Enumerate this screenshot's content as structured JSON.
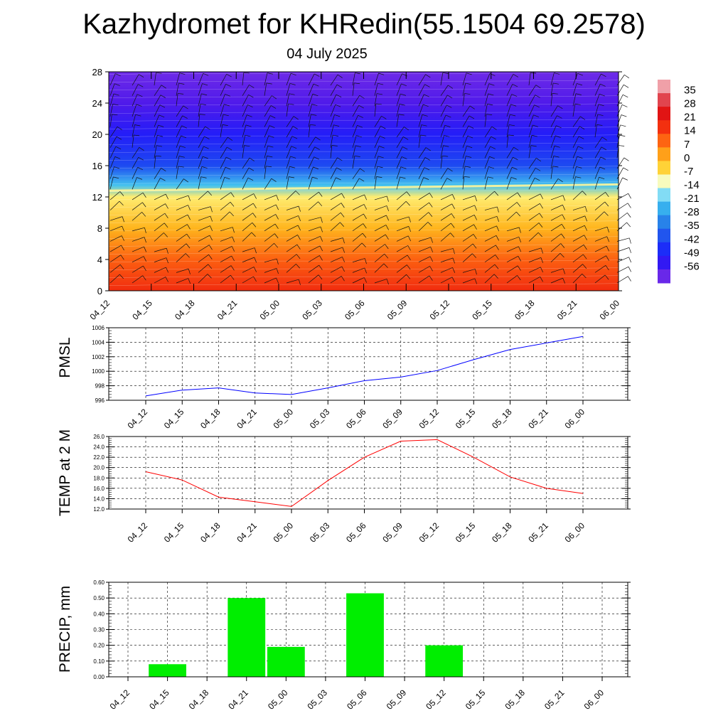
{
  "header": {
    "title": "Kazhydromet for KHRedin(55.1504 69.2578)",
    "date": "04 July 2025"
  },
  "chart_data": [
    {
      "type": "heatmap",
      "xlabel": "",
      "ylabel": "",
      "x_ticks": [
        "04_12",
        "04_15",
        "04_18",
        "04_21",
        "05_00",
        "05_03",
        "05_06",
        "05_09",
        "05_12",
        "05_15",
        "05_18",
        "05_21",
        "06_00"
      ],
      "y_ticks": [
        0,
        4,
        8,
        12,
        16,
        20,
        24,
        28
      ],
      "ylim": [
        0,
        28
      ],
      "colorbar": {
        "labels": [
          "35",
          "28",
          "21",
          "14",
          "7",
          "0",
          "-7",
          "-14",
          "-21",
          "-28",
          "-35",
          "-42",
          "-49",
          "-56"
        ],
        "range": [
          -63,
          42
        ]
      },
      "temperature_profile": {
        "levels": [
          0,
          4,
          8,
          12,
          13.5,
          16,
          20,
          24,
          28
        ],
        "surface_values": [
          18,
          11,
          1,
          -8,
          -22,
          -40,
          -50,
          -57,
          -60
        ],
        "boundary_level_start": 12.8,
        "boundary_level_end": 13.6
      },
      "wind_barbs": true
    },
    {
      "type": "line",
      "ylabel": "PMSL",
      "x": [
        "04_12",
        "04_15",
        "04_18",
        "04_21",
        "05_00",
        "05_03",
        "05_06",
        "05_09",
        "05_12",
        "05_15",
        "05_18",
        "05_21",
        "06_00"
      ],
      "series": [
        {
          "values": [
            996.6,
            997.4,
            997.7,
            997.0,
            996.8,
            997.7,
            998.7,
            999.2,
            1000.1,
            1001.6,
            1003.0,
            1003.9,
            1004.8
          ],
          "color": "#0000ff"
        }
      ],
      "ylim": [
        996,
        1006
      ],
      "y_ticks": [
        "996",
        "998",
        "1000",
        "1002",
        "1004",
        "1006"
      ],
      "grid": true
    },
    {
      "type": "line",
      "ylabel": "TEMP at 2 M",
      "x": [
        "04_12",
        "04_15",
        "04_18",
        "04_21",
        "05_00",
        "05_03",
        "05_06",
        "05_09",
        "05_12",
        "05_15",
        "05_18",
        "05_21",
        "06_00"
      ],
      "series": [
        {
          "values": [
            19.2,
            17.6,
            14.3,
            13.4,
            12.5,
            17.5,
            22.0,
            25.1,
            25.4,
            22.0,
            18.2,
            16.0,
            15.0
          ],
          "color": "#ff0000"
        }
      ],
      "ylim": [
        12,
        26
      ],
      "y_ticks": [
        "12.0",
        "14.0",
        "16.0",
        "18.0",
        "20.0",
        "22.0",
        "24.0",
        "26.0"
      ],
      "grid": true
    },
    {
      "type": "bar",
      "ylabel": "PRECIP, mm",
      "categories": [
        "04_12",
        "04_15",
        "04_18",
        "04_21",
        "05_00",
        "05_03",
        "05_06",
        "05_09",
        "05_12",
        "05_15",
        "05_18",
        "05_21",
        "06_00"
      ],
      "values": [
        0,
        0.08,
        0,
        0.5,
        0.19,
        0,
        0.53,
        0,
        0.2,
        0,
        0,
        0,
        0
      ],
      "color": "#00ee00",
      "ylim": [
        0,
        0.6
      ],
      "y_ticks": [
        "0.00",
        "0.10",
        "0.20",
        "0.30",
        "0.40",
        "0.50",
        "0.60"
      ],
      "grid": true
    }
  ]
}
